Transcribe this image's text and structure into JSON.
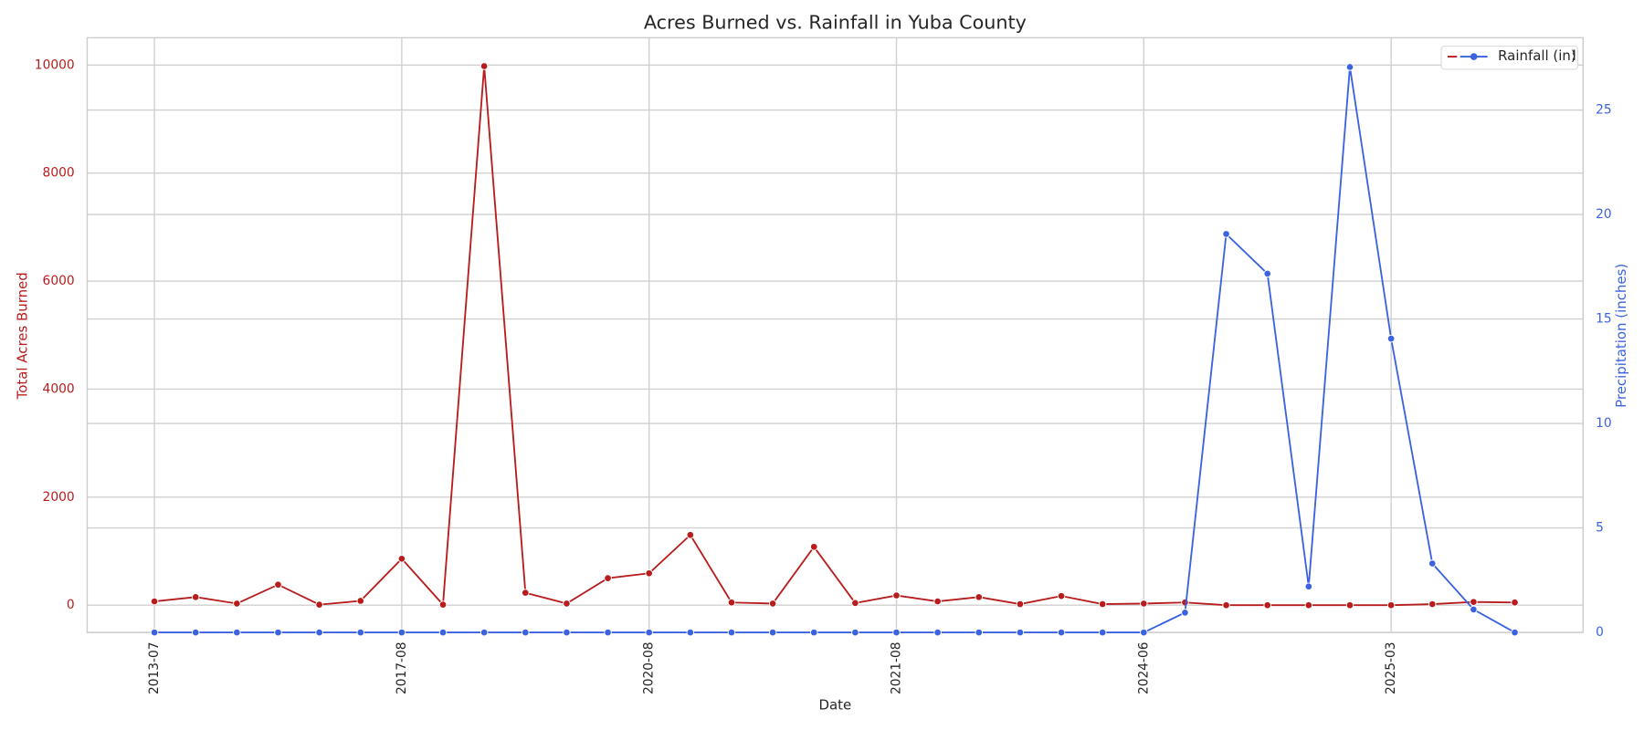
{
  "chart_data": {
    "type": "line",
    "title": "Acres Burned vs. Rainfall in Yuba County",
    "x_label": "Date",
    "y_label": "Total Acres Burned",
    "y2_label": "Precipitation (inches)",
    "categories": [
      "2013-07",
      null,
      null,
      null,
      null,
      null,
      "2017-08",
      null,
      null,
      null,
      null,
      null,
      "2020-08",
      null,
      null,
      null,
      null,
      null,
      "2021-08",
      null,
      null,
      null,
      null,
      null,
      "2024-06",
      null,
      null,
      null,
      null,
      null,
      "2025-03",
      null,
      null,
      null
    ],
    "series": [
      {
        "name": "Acres Burned",
        "color": "#b81c1c",
        "values": [
          70,
          150,
          30,
          380,
          10,
          80,
          860,
          10,
          9980,
          230,
          30,
          500,
          590,
          1300,
          50,
          30,
          1080,
          40,
          180,
          70,
          150,
          20,
          170,
          20,
          30,
          50,
          0,
          0,
          0,
          0,
          0,
          20,
          60,
          50
        ]
      },
      {
        "name": "Rainfall (in)",
        "color": "#3b62e0",
        "axis": "y2",
        "values": [
          0,
          0,
          0,
          0,
          0,
          0,
          0,
          0,
          0,
          0,
          0,
          0,
          0,
          0,
          0,
          0,
          0,
          0,
          0,
          0,
          0,
          0,
          0,
          0,
          0,
          0.95,
          19.07,
          17.17,
          2.2,
          27.06,
          14.06,
          3.3,
          1.1,
          0
        ]
      }
    ],
    "ylim": [
      -505,
      10505
    ],
    "yticks": [
      0,
      2000,
      4000,
      6000,
      8000,
      10000
    ],
    "y2lim": [
      0,
      28.46
    ],
    "y2ticks": [
      0,
      5,
      10,
      15,
      20,
      25
    ],
    "grid": true,
    "legend": "upper right"
  }
}
